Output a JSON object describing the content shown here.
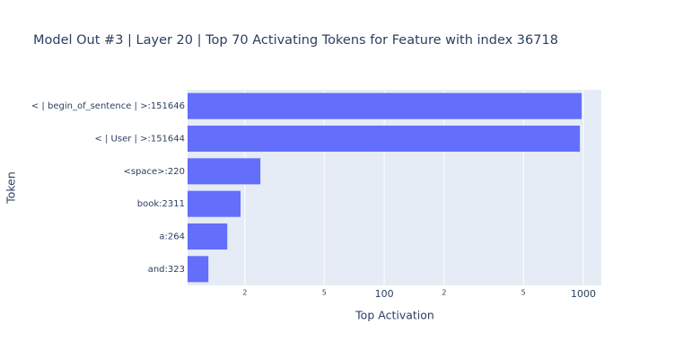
{
  "chart_data": {
    "type": "bar",
    "orientation": "horizontal",
    "title": "Model Out #3 | Layer 20 | Top 70 Activating Tokens for Feature with index 36718",
    "xlabel": "Top Activation",
    "ylabel": "Token",
    "categories": [
      "< | begin_of_sentence | >:151646",
      "< | User | >:151644",
      "<space>:220",
      "book:2311",
      "a:264",
      "and:323"
    ],
    "values": [
      980,
      960,
      23.9,
      19,
      16.3,
      13.1
    ],
    "color": "#636efa",
    "xscale": "log",
    "xlim": [
      10.3,
      1230
    ],
    "xticks": [
      {
        "value": 20,
        "label": "2"
      },
      {
        "value": 50,
        "label": "5"
      },
      100,
      {
        "value": 200,
        "label": "2"
      },
      {
        "value": 500,
        "label": "5"
      },
      1000
    ],
    "grid": true
  }
}
